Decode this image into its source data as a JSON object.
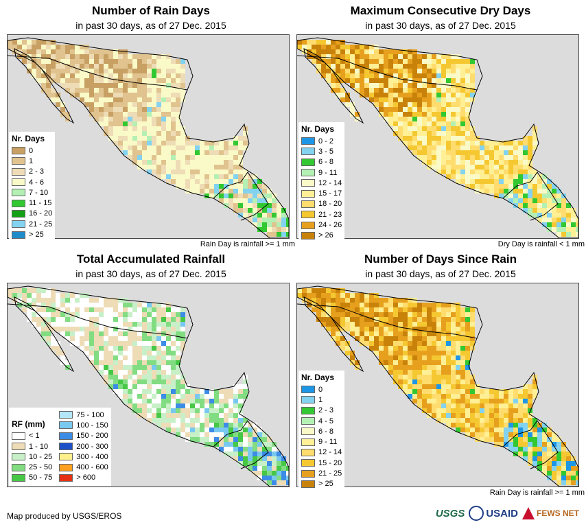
{
  "panels": {
    "rain_days": {
      "title": "Number of Rain Days",
      "subtitle": "in past 30 days, as of 27 Dec. 2015",
      "note": "Rain Day is rainfall >= 1 mm",
      "legend_title": "Nr. Days",
      "legend": [
        {
          "label": "0",
          "color": "#c8a064"
        },
        {
          "label": "1",
          "color": "#e0c38e"
        },
        {
          "label": "2 - 3",
          "color": "#eedcb6"
        },
        {
          "label": "4 - 6",
          "color": "#fafac8"
        },
        {
          "label": "7 - 10",
          "color": "#b4f0b4"
        },
        {
          "label": "11 - 15",
          "color": "#32c832"
        },
        {
          "label": "16 - 20",
          "color": "#14a014"
        },
        {
          "label": "21 - 25",
          "color": "#82d2f0"
        },
        {
          "label": "> 25",
          "color": "#1e8cc8"
        }
      ]
    },
    "dry_days": {
      "title": "Maximum Consecutive Dry Days",
      "subtitle": "in past 30 days, as of 27 Dec. 2015",
      "note": "Dry Day is rainfall < 1 mm",
      "legend_title": "Nr. Days",
      "legend": [
        {
          "label": "0 - 2",
          "color": "#1e96e6"
        },
        {
          "label": "3 - 5",
          "color": "#82d2f0"
        },
        {
          "label": "6 - 8",
          "color": "#32c832"
        },
        {
          "label": "9 - 11",
          "color": "#b4f0b4"
        },
        {
          "label": "12 - 14",
          "color": "#fafac8"
        },
        {
          "label": "15 - 17",
          "color": "#fff096"
        },
        {
          "label": "18 - 20",
          "color": "#ffdc6e"
        },
        {
          "label": "21 - 23",
          "color": "#f5c832"
        },
        {
          "label": "24 - 26",
          "color": "#e6a01e"
        },
        {
          "label": "> 26",
          "color": "#c8820a"
        }
      ]
    },
    "rainfall": {
      "title": "Total Accumulated Rainfall",
      "subtitle": "in past 30 days, as of 27 Dec. 2015",
      "note": "",
      "legend_title": "RF (mm)",
      "legend": [
        {
          "label": "< 1",
          "color": "#ffffff"
        },
        {
          "label": "1 - 10",
          "color": "#eedcb6"
        },
        {
          "label": "10 - 25",
          "color": "#c8f0c8"
        },
        {
          "label": "25 - 50",
          "color": "#82dc82"
        },
        {
          "label": "50 - 75",
          "color": "#46c846"
        },
        {
          "label": "75 - 100",
          "color": "#b4e6fa"
        },
        {
          "label": "100 - 150",
          "color": "#78c8f0"
        },
        {
          "label": "150 - 200",
          "color": "#3c8ce6"
        },
        {
          "label": "200 - 300",
          "color": "#1e50c8"
        },
        {
          "label": "300 - 400",
          "color": "#fff08c"
        },
        {
          "label": "400 - 600",
          "color": "#ffa01e"
        },
        {
          "label": "> 600",
          "color": "#e63214"
        }
      ]
    },
    "since_rain": {
      "title": "Number of Days Since Rain",
      "subtitle": "in past 30 days, as of 27 Dec. 2015",
      "note": "Rain Day is rainfall >= 1 mm",
      "legend_title": "Nr. Days",
      "legend": [
        {
          "label": "0",
          "color": "#1e96e6"
        },
        {
          "label": "1",
          "color": "#82d2f0"
        },
        {
          "label": "2 - 3",
          "color": "#32c832"
        },
        {
          "label": "4 - 5",
          "color": "#b4f0b4"
        },
        {
          "label": "6 - 8",
          "color": "#fafac8"
        },
        {
          "label": "9 - 11",
          "color": "#fff096"
        },
        {
          "label": "12 - 14",
          "color": "#ffdc6e"
        },
        {
          "label": "15 - 20",
          "color": "#f5c832"
        },
        {
          "label": "21 - 25",
          "color": "#e6a01e"
        },
        {
          "label": "> 25",
          "color": "#c8820a"
        }
      ]
    }
  },
  "footer": {
    "credit": "Map produced by USGS/EROS",
    "logos": [
      "USGS",
      "USAID",
      "FEWS NET"
    ]
  },
  "colors": {
    "ocean": "#dcdcdc",
    "border": "#000000"
  }
}
